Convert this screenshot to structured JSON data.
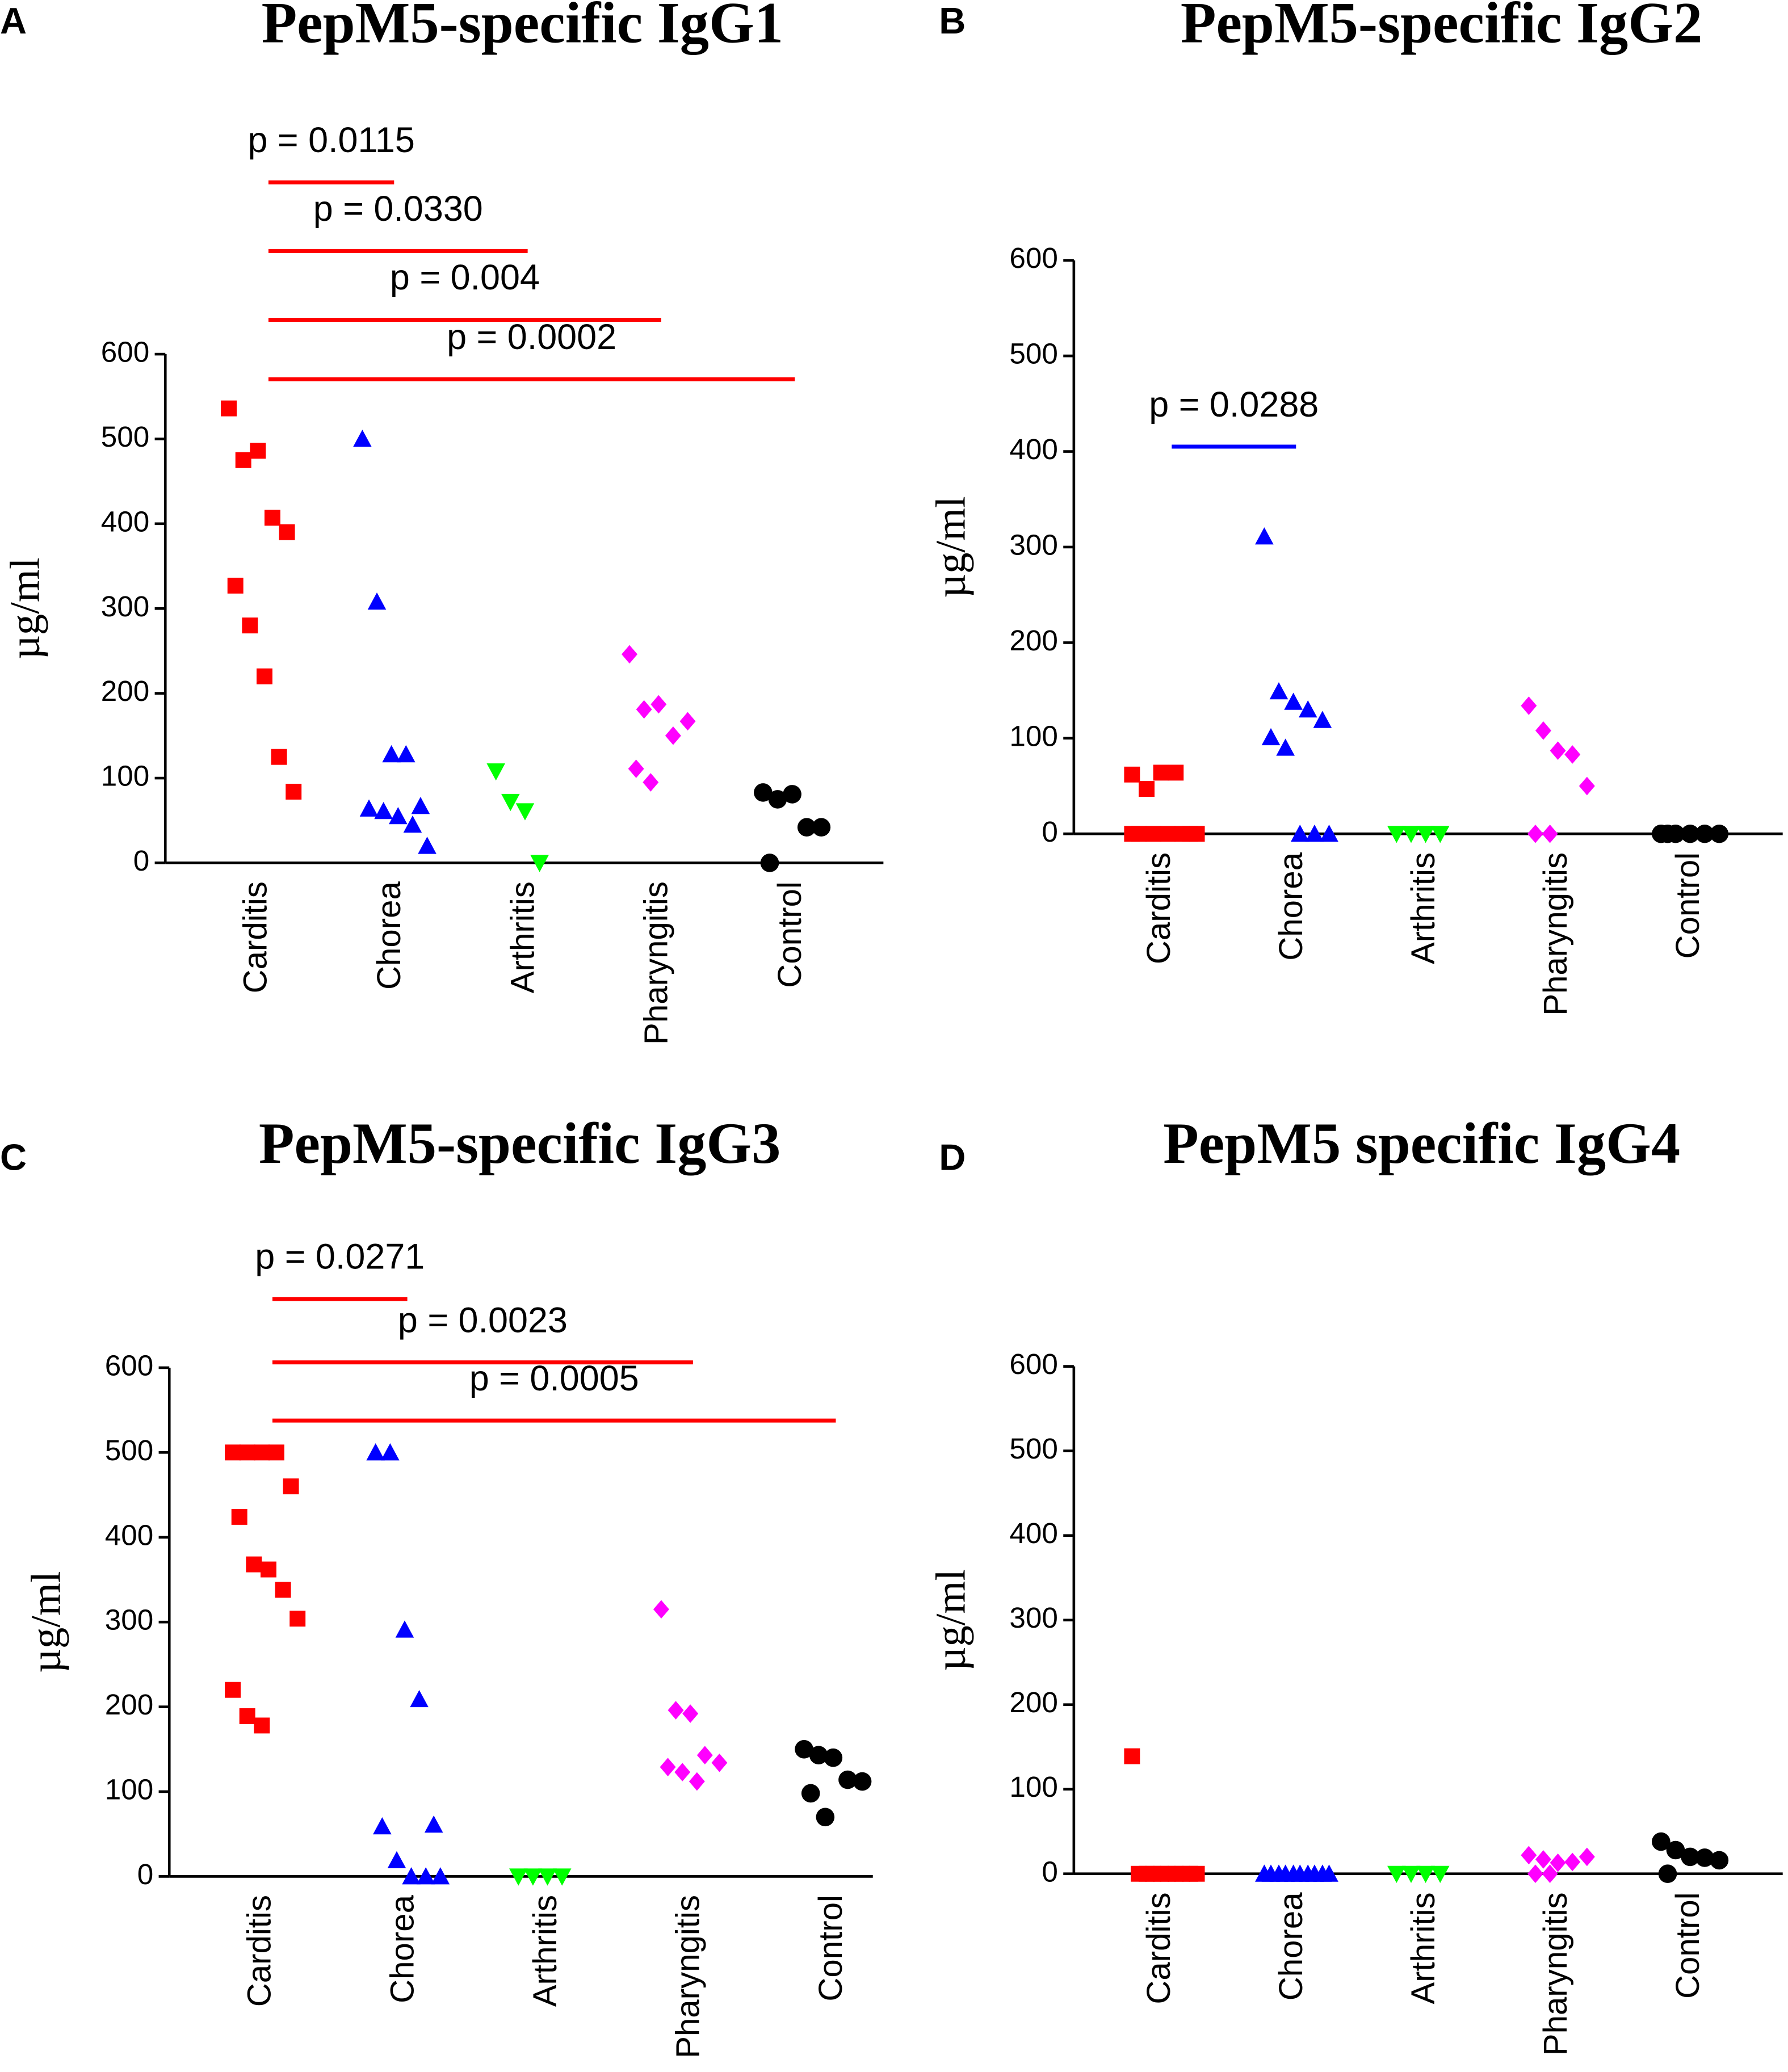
{
  "chart_data": [
    {
      "type": "dot",
      "panel": "A",
      "title": "PepM5-specific IgG1",
      "ylabel": "µg/ml",
      "categories": [
        "Carditis",
        "Chorea",
        "Arthritis",
        "Pharyngitis",
        "Control"
      ],
      "colors": [
        "#ff0000",
        "#0000ff",
        "#00ff00",
        "#ff00ff",
        "#000000"
      ],
      "markers": [
        "square",
        "triangle-up",
        "triangle-down",
        "diamond",
        "circle"
      ],
      "groups": [
        [
          536,
          475,
          486,
          407,
          390,
          327,
          280,
          220,
          125,
          84
        ],
        [
          500,
          308,
          128,
          128,
          67,
          64,
          61,
          55,
          45,
          20
        ],
        [
          108,
          72,
          61,
          0
        ],
        [
          246,
          181,
          187,
          150,
          167,
          111,
          95
        ],
        [
          83,
          75,
          81,
          42,
          42,
          0
        ]
      ],
      "ylim": [
        0,
        600
      ],
      "yticks": [
        0,
        100,
        200,
        300,
        400,
        500,
        600
      ],
      "comparisons": [
        {
          "label": "p = 0.0115",
          "groups": [
            "Carditis",
            "Chorea"
          ],
          "color": "#ff0000"
        },
        {
          "label": "p = 0.0330",
          "groups": [
            "Carditis",
            "Arthritis"
          ],
          "color": "#ff0000"
        },
        {
          "label": "p = 0.004",
          "groups": [
            "Carditis",
            "Pharyngitis"
          ],
          "color": "#ff0000"
        },
        {
          "label": "p = 0.0002",
          "groups": [
            "Carditis",
            "Control"
          ],
          "color": "#ff0000"
        }
      ]
    },
    {
      "type": "dot",
      "panel": "B",
      "title": "PepM5-specific IgG2",
      "ylabel": "µg/ml",
      "categories": [
        "Carditis",
        "Chorea",
        "Arthritis",
        "Pharyngitis",
        "Control"
      ],
      "colors": [
        "#ff0000",
        "#0000ff",
        "#00ff00",
        "#ff00ff",
        "#000000"
      ],
      "markers": [
        "square",
        "triangle-up",
        "triangle-down",
        "diamond",
        "circle"
      ],
      "groups": [
        [
          62,
          47,
          64,
          64,
          0,
          0,
          0,
          0,
          0,
          0,
          0
        ],
        [
          311,
          149,
          138,
          130,
          119,
          101,
          90,
          0,
          0,
          0
        ],
        [
          0,
          0,
          0,
          0
        ],
        [
          134,
          108,
          87,
          83,
          50,
          0,
          0
        ],
        [
          0,
          0,
          0,
          0,
          0,
          0
        ]
      ],
      "ylim": [
        0,
        600
      ],
      "yticks": [
        0,
        100,
        200,
        300,
        400,
        500,
        600
      ],
      "comparisons": [
        {
          "label": "p = 0.0288",
          "groups": [
            "Carditis",
            "Chorea"
          ],
          "color": "#0000ff"
        }
      ]
    },
    {
      "type": "dot",
      "panel": "C",
      "title": "PepM5-specific IgG3",
      "ylabel": "µg/ml",
      "categories": [
        "Carditis",
        "Chorea",
        "Arthritis",
        "Pharyngitis",
        "Control"
      ],
      "colors": [
        "#ff0000",
        "#0000ff",
        "#00ff00",
        "#ff00ff",
        "#000000"
      ],
      "markers": [
        "square",
        "triangle-up",
        "triangle-down",
        "diamond",
        "circle"
      ],
      "groups": [
        [
          500,
          500,
          500,
          500,
          460,
          424,
          368,
          362,
          338,
          304,
          220,
          189,
          178
        ],
        [
          500,
          500,
          291,
          209,
          61,
          59,
          19,
          0,
          0,
          0
        ],
        [
          0,
          0,
          0,
          0
        ],
        [
          315,
          196,
          192,
          143,
          134,
          129,
          123,
          112
        ],
        [
          150,
          143,
          140,
          114,
          112,
          98,
          70
        ]
      ],
      "ylim": [
        0,
        600
      ],
      "yticks": [
        0,
        100,
        200,
        300,
        400,
        500,
        600
      ],
      "comparisons": [
        {
          "label": "p = 0.0271",
          "groups": [
            "Carditis",
            "Chorea"
          ],
          "color": "#ff0000"
        },
        {
          "label": "p = 0.0023",
          "groups": [
            "Carditis",
            "Pharyngitis"
          ],
          "color": "#ff0000"
        },
        {
          "label": "p = 0.0005",
          "groups": [
            "Carditis",
            "Control"
          ],
          "color": "#ff0000"
        }
      ]
    },
    {
      "type": "dot",
      "panel": "D",
      "title": "PepM5 specific IgG4",
      "ylabel": "µg/ml",
      "categories": [
        "Carditis",
        "Chorea",
        "Arthritis",
        "Pharyngitis",
        "Control"
      ],
      "colors": [
        "#ff0000",
        "#0000ff",
        "#00ff00",
        "#ff00ff",
        "#000000"
      ],
      "markers": [
        "square",
        "triangle-up",
        "triangle-down",
        "diamond",
        "circle"
      ],
      "groups": [
        [
          139,
          0,
          0,
          0,
          0,
          0,
          0,
          0,
          0,
          0
        ],
        [
          0,
          0,
          0,
          0,
          0,
          0,
          0,
          0,
          0,
          0
        ],
        [
          0,
          0,
          0,
          0
        ],
        [
          22,
          17,
          13,
          14,
          20,
          0,
          0
        ],
        [
          38,
          28,
          20,
          19,
          16,
          0
        ]
      ],
      "ylim": [
        0,
        600
      ],
      "yticks": [
        0,
        100,
        200,
        300,
        400,
        500,
        600
      ],
      "comparisons": []
    }
  ]
}
